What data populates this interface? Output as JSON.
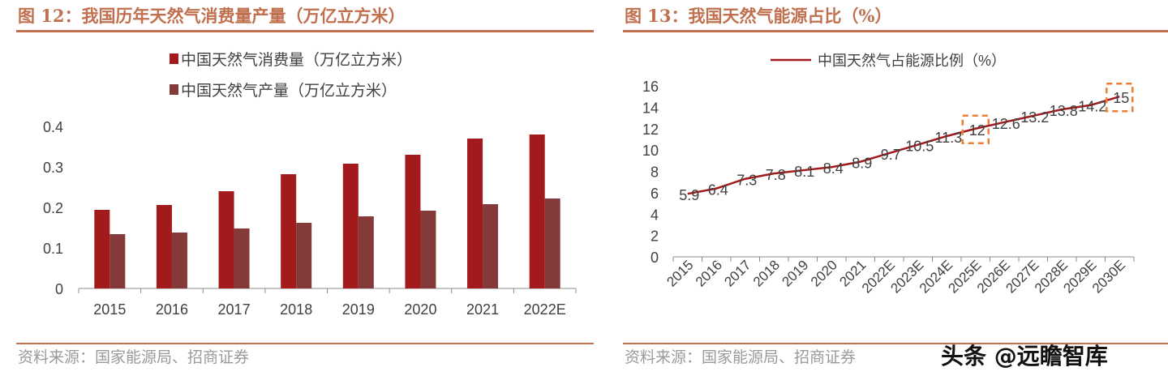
{
  "colors": {
    "title": "#c0704f",
    "consumption": "#a31a1c",
    "production": "#853a3a",
    "line": "#a31a1c",
    "highlight": "#ed7d31"
  },
  "left": {
    "title": "图 12：我国历年天然气消费量产量（万亿立方米）",
    "source": "资料来源：国家能源局、招商证券"
  },
  "right": {
    "title": "图 13：我国天然气能源占比（%）",
    "source": "资料来源：国家能源局、招商证券"
  },
  "watermark": "头条 @远瞻智库",
  "chart_data": [
    {
      "type": "bar",
      "categories": [
        "2015",
        "2016",
        "2017",
        "2018",
        "2019",
        "2020",
        "2021",
        "2022E"
      ],
      "series": [
        {
          "name": "中国天然气消费量（万亿立方米）",
          "values": [
            0.194,
            0.206,
            0.24,
            0.282,
            0.308,
            0.33,
            0.37,
            0.38
          ]
        },
        {
          "name": "中国天然气产量（万亿立方米）",
          "values": [
            0.134,
            0.138,
            0.148,
            0.162,
            0.178,
            0.192,
            0.208,
            0.222
          ]
        }
      ],
      "ylim": [
        0,
        0.4
      ],
      "yticks": [
        "0",
        "0.1",
        "0.2",
        "0.3",
        "0.4"
      ],
      "legend": "top",
      "grid": false
    },
    {
      "type": "line",
      "categories": [
        "2015",
        "2016",
        "2017",
        "2018",
        "2019",
        "2020",
        "2021",
        "2022E",
        "2023E",
        "2024E",
        "2025E",
        "2026E",
        "2027E",
        "2028E",
        "2029E",
        "2030E"
      ],
      "series": [
        {
          "name": "中国天然气占能源比例（%）",
          "values": [
            5.9,
            6.4,
            7.3,
            7.8,
            8.1,
            8.4,
            8.9,
            9.7,
            10.5,
            11.3,
            12,
            12.6,
            13.2,
            13.8,
            14.2,
            15
          ]
        }
      ],
      "labels": [
        "5.9",
        "6.4",
        "7.3",
        "7.8",
        "8.1",
        "8.4",
        "8.9",
        "9.7",
        "10.5",
        "11.3",
        "12",
        "12.6",
        "13.2",
        "13.8",
        "14.2",
        "15"
      ],
      "ylim": [
        0,
        16
      ],
      "yticks": [
        "0",
        "2",
        "4",
        "6",
        "8",
        "10",
        "12",
        "14",
        "16"
      ],
      "highlighted": [
        "2025E",
        "2030E"
      ],
      "legend": "top",
      "grid": false
    }
  ]
}
